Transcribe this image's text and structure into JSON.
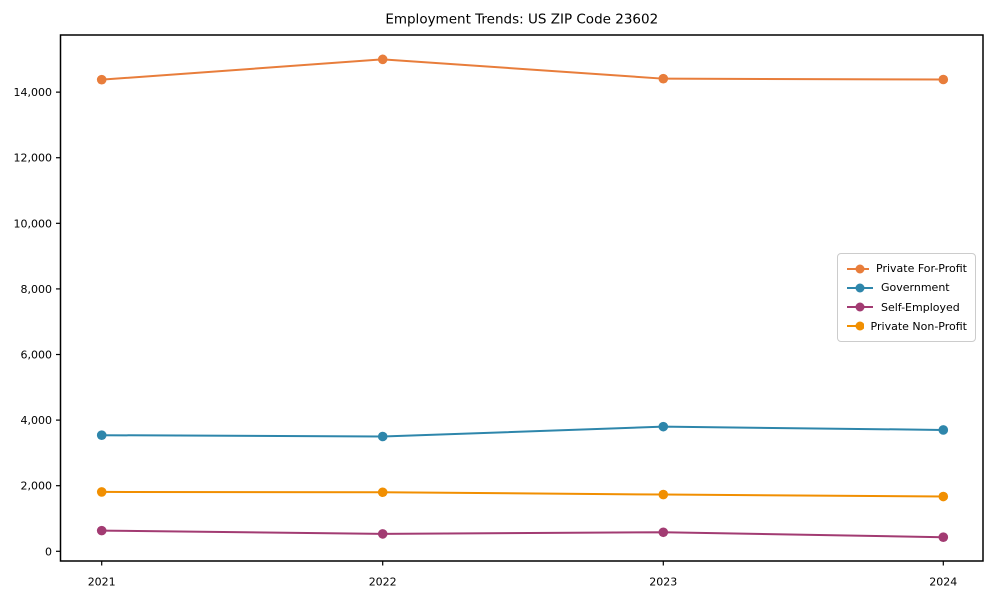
{
  "chart_data": {
    "type": "line",
    "title": "Employment Trends: US ZIP Code 23602",
    "x": [
      2021,
      2022,
      2023,
      2024
    ],
    "x_tick_labels": [
      "2021",
      "2022",
      "2023",
      "2024"
    ],
    "y_ticks": [
      0,
      2000,
      4000,
      6000,
      8000,
      10000,
      12000,
      14000
    ],
    "y_tick_labels": [
      "0",
      "2,000",
      "4,000",
      "6,000",
      "8,000",
      "10,000",
      "12,000",
      "14,000"
    ],
    "ylim": [
      -296,
      15742
    ],
    "grid": false,
    "legend_position": "center right",
    "marker": "circle",
    "series": [
      {
        "name": "Private For-Profit",
        "color": "#E87D3B",
        "values": [
          14380,
          15000,
          14410,
          14385
        ]
      },
      {
        "name": "Government",
        "color": "#2E86AB",
        "values": [
          3540,
          3500,
          3800,
          3700
        ]
      },
      {
        "name": "Self-Employed",
        "color": "#A23B72",
        "values": [
          630,
          530,
          580,
          430
        ]
      },
      {
        "name": "Private Non-Profit",
        "color": "#F18F01",
        "values": [
          1810,
          1800,
          1730,
          1670
        ]
      }
    ]
  }
}
